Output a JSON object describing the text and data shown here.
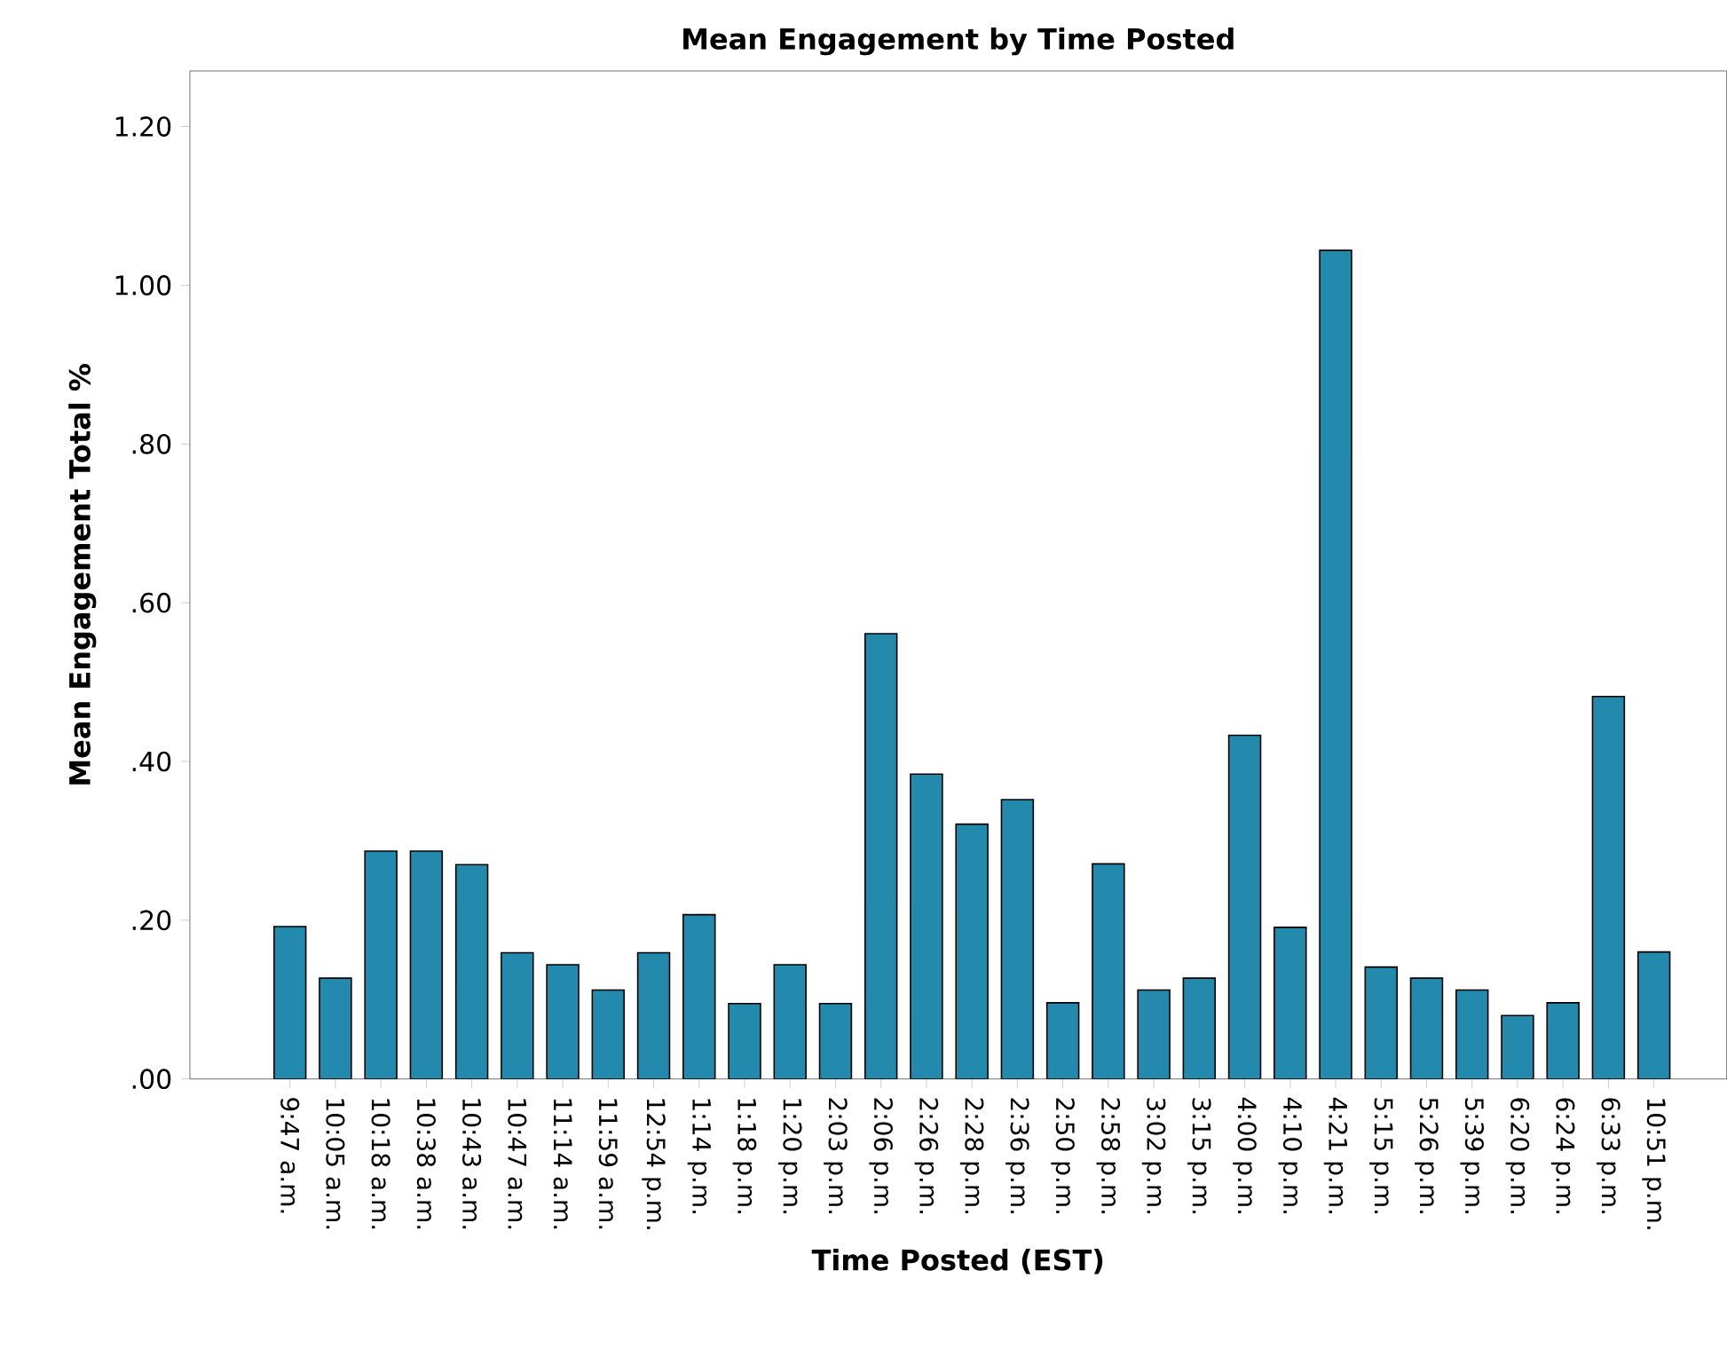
{
  "chart_data": {
    "type": "bar",
    "title": "Mean Engagement by Time Posted",
    "xlabel": "Time Posted (EST)",
    "ylabel": "Mean Engagement Total %",
    "categories": [
      "9:47 a.m.",
      "10:05 a.m.",
      "10:18 a.m.",
      "10:38 a.m.",
      "10:43 a.m.",
      "10:47 a.m.",
      "11:14 a.m.",
      "11:59 a.m.",
      "12:54 p.m.",
      "1:14 p.m.",
      "1:18 p.m.",
      "1:20 p.m.",
      "2:03 p.m.",
      "2:06 p.m.",
      "2:26 p.m.",
      "2:28 p.m.",
      "2:36 p.m.",
      "2:50 p.m.",
      "2:58 p.m.",
      "3:02 p.m.",
      "3:15 p.m.",
      "4:00 p.m.",
      "4:10 p.m.",
      "4:21 p.m.",
      "5:15 p.m.",
      "5:26 p.m.",
      "5:39 p.m.",
      "6:20 p.m.",
      "6:24 p.m.",
      "6:33 p.m.",
      "10:51 p.m."
    ],
    "values": [
      0.192,
      0.127,
      0.287,
      0.287,
      0.27,
      0.159,
      0.144,
      0.112,
      0.159,
      0.207,
      0.095,
      0.144,
      0.095,
      0.561,
      0.384,
      0.321,
      0.352,
      0.096,
      0.271,
      0.112,
      0.127,
      0.433,
      0.191,
      1.044,
      0.141,
      0.127,
      0.112,
      0.08,
      0.096,
      0.482,
      0.16
    ],
    "color": "#248aad",
    "ylim": [
      0,
      1.27
    ],
    "yticks": [
      {
        "value": 0,
        "label": ".00"
      },
      {
        "value": 0.2,
        "label": ".20"
      },
      {
        "value": 0.4,
        "label": ".40"
      },
      {
        "value": 0.6,
        "label": ".60"
      },
      {
        "value": 0.8,
        "label": ".80"
      },
      {
        "value": 1.0,
        "label": "1.00"
      },
      {
        "value": 1.2,
        "label": "1.20"
      }
    ]
  }
}
